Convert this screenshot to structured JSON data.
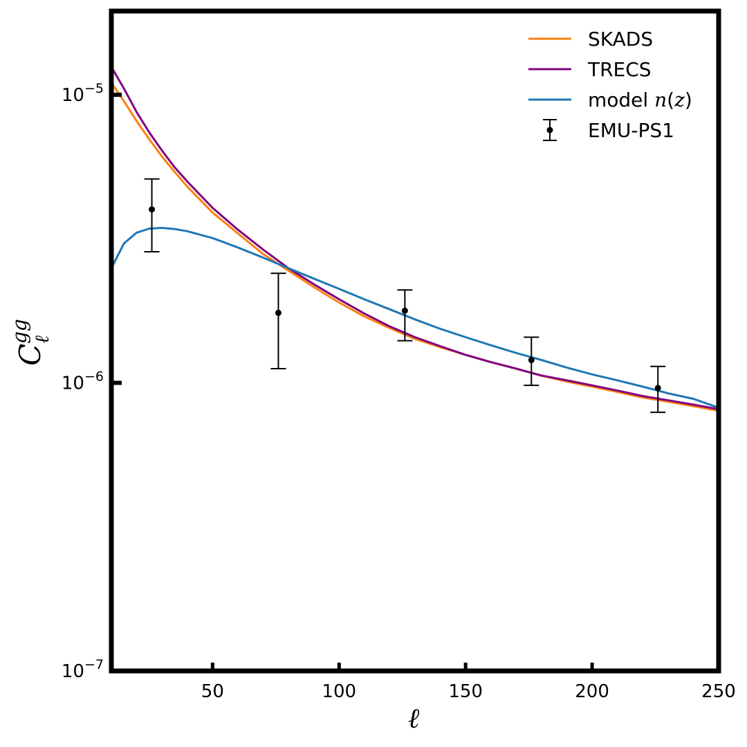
{
  "chart_data": {
    "type": "line",
    "title": "",
    "xlabel": "ℓ",
    "ylabel": {
      "base": "C",
      "sup": "gg",
      "sub": "ℓ"
    },
    "xlim": [
      10,
      250
    ],
    "ylim": [
      1e-07,
      2.2e-05
    ],
    "yscale": "log",
    "grid": false,
    "legend_position": "top-right",
    "x_ticks": [
      {
        "value": 50,
        "label": "50"
      },
      {
        "value": 100,
        "label": "100"
      },
      {
        "value": 150,
        "label": "150"
      },
      {
        "value": 200,
        "label": "200"
      },
      {
        "value": 250,
        "label": "250"
      }
    ],
    "y_ticks": [
      {
        "value": 1e-07,
        "base": "10",
        "exp": "−7"
      },
      {
        "value": 1e-06,
        "base": "10",
        "exp": "−6"
      },
      {
        "value": 1e-05,
        "base": "10",
        "exp": "−5"
      }
    ],
    "x": [
      10,
      15,
      20,
      25,
      30,
      35,
      40,
      50,
      60,
      70,
      80,
      90,
      100,
      110,
      120,
      130,
      140,
      150,
      160,
      170,
      180,
      190,
      200,
      210,
      220,
      230,
      240,
      250
    ],
    "series": [
      {
        "name": "SKADS",
        "color": "#ff7f0e",
        "values": [
          1.1e-05,
          9.5e-06,
          8.1e-06,
          7e-06,
          6.1e-06,
          5.4e-06,
          4.8e-06,
          3.9e-06,
          3.3e-06,
          2.8e-06,
          2.45e-06,
          2.15e-06,
          1.9e-06,
          1.7e-06,
          1.55e-06,
          1.42e-06,
          1.33e-06,
          1.25e-06,
          1.18e-06,
          1.12e-06,
          1.06e-06,
          1.01e-06,
          9.7e-07,
          9.3e-07,
          8.9e-07,
          8.6e-07,
          8.3e-07,
          8e-07
        ]
      },
      {
        "name": "TRECS",
        "color": "#800080",
        "values": [
          1.25e-05,
          1.05e-05,
          8.7e-06,
          7.4e-06,
          6.4e-06,
          5.6e-06,
          5e-06,
          4.05e-06,
          3.4e-06,
          2.9e-06,
          2.5e-06,
          2.2e-06,
          1.95e-06,
          1.74e-06,
          1.57e-06,
          1.44e-06,
          1.34e-06,
          1.25e-06,
          1.18e-06,
          1.12e-06,
          1.06e-06,
          1.02e-06,
          9.8e-07,
          9.4e-07,
          9e-07,
          8.7e-07,
          8.4e-07,
          8.1e-07
        ]
      },
      {
        "name": "model n(z)",
        "name_parts": [
          "model ",
          "n",
          "(",
          "z",
          ")"
        ],
        "color": "#1f77b4",
        "values": [
          2.5e-06,
          3.05e-06,
          3.32e-06,
          3.43e-06,
          3.45e-06,
          3.42e-06,
          3.36e-06,
          3.18e-06,
          2.95e-06,
          2.72e-06,
          2.5e-06,
          2.3e-06,
          2.12e-06,
          1.95e-06,
          1.8e-06,
          1.66e-06,
          1.54e-06,
          1.44e-06,
          1.35e-06,
          1.27e-06,
          1.2e-06,
          1.13e-06,
          1.07e-06,
          1.02e-06,
          9.7e-07,
          9.2e-07,
          8.8e-07,
          8.2e-07
        ]
      }
    ],
    "points": {
      "name": "EMU-PS1",
      "color": "#000000",
      "x": [
        26,
        76,
        126,
        176,
        226
      ],
      "y": [
        4e-06,
        1.75e-06,
        1.78e-06,
        1.2e-06,
        9.6e-07
      ],
      "yerr_low": [
        2.85e-06,
        1.12e-06,
        1.4e-06,
        9.8e-07,
        7.9e-07
      ],
      "yerr_high": [
        5.1e-06,
        2.4e-06,
        2.1e-06,
        1.44e-06,
        1.14e-06
      ]
    }
  }
}
